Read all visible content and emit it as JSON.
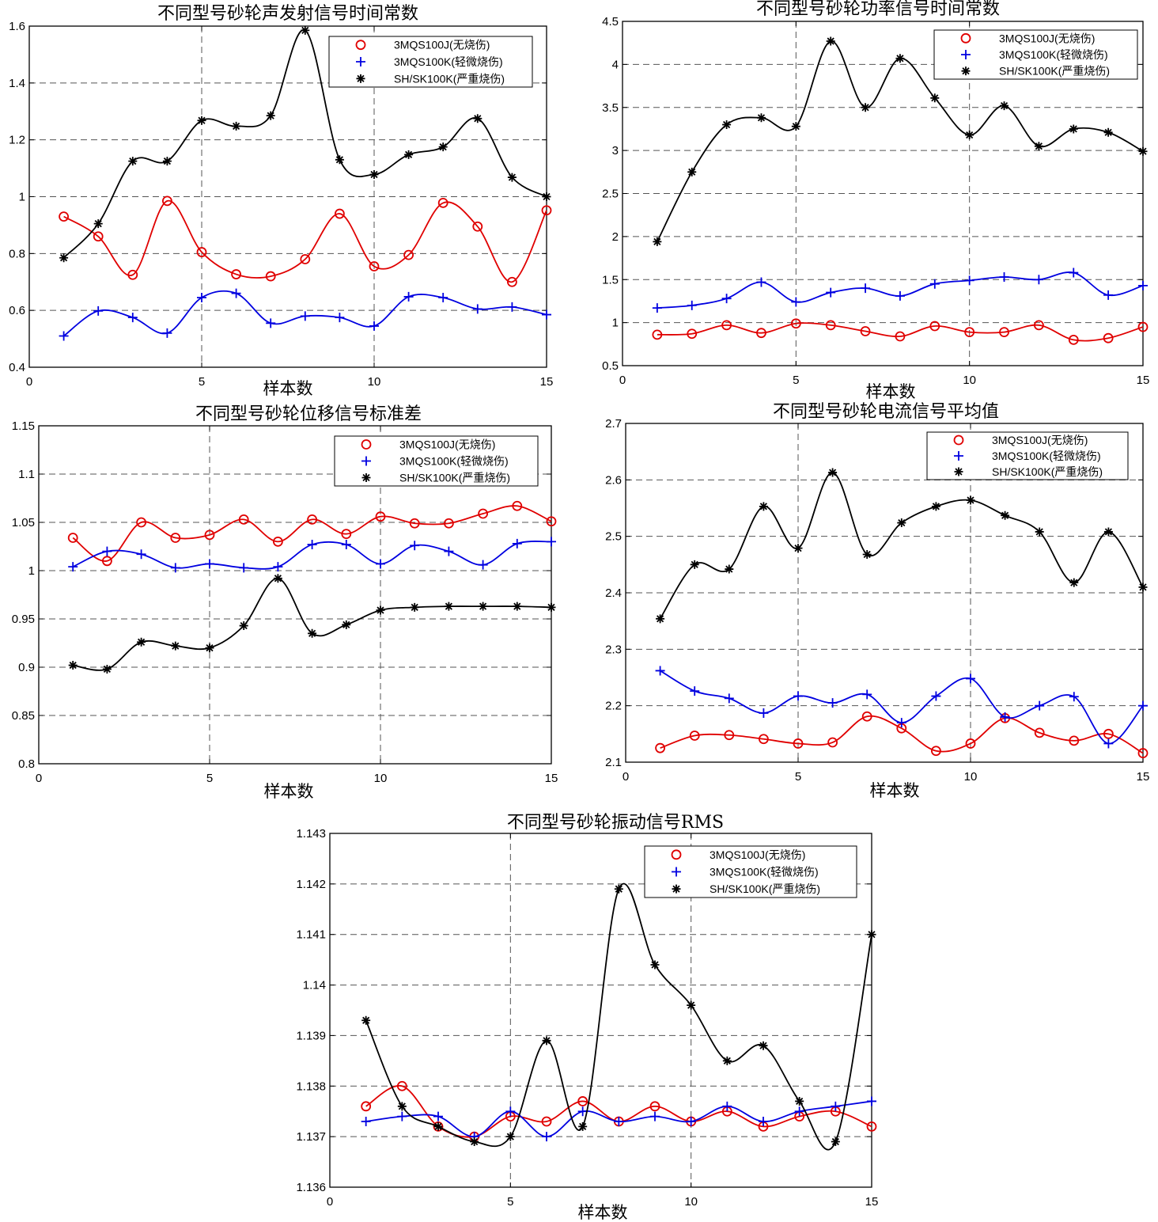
{
  "chart_data": [
    {
      "type": "line",
      "title": "不同型号砂轮声发射信号时间常数",
      "xlabel": "样本数",
      "ylabel": "",
      "xlim": [
        0,
        15
      ],
      "ylim": [
        0.4,
        1.6
      ],
      "xticks": [
        "0",
        "5",
        "10",
        "15"
      ],
      "yticks": [
        "0.4",
        "0.6",
        "0.8",
        "1",
        "1.2",
        "1.4",
        "1.6"
      ],
      "grid": true,
      "legend_position": "top-right",
      "x": [
        1,
        2,
        3,
        4,
        5,
        6,
        7,
        8,
        9,
        10,
        11,
        12,
        13,
        14,
        15
      ],
      "series": [
        {
          "name": "3MQS100J(无烧伤)",
          "color": "#e00000",
          "marker": "circle",
          "values": [
            0.93,
            0.86,
            0.725,
            0.985,
            0.805,
            0.727,
            0.72,
            0.78,
            0.94,
            0.755,
            0.795,
            0.978,
            0.895,
            0.7,
            0.952
          ]
        },
        {
          "name": "3MQS100K(轻微烧伤)",
          "color": "#0000e0",
          "marker": "plus",
          "values": [
            0.51,
            0.598,
            0.575,
            0.52,
            0.645,
            0.66,
            0.555,
            0.58,
            0.575,
            0.545,
            0.648,
            0.645,
            0.605,
            0.612,
            0.585
          ]
        },
        {
          "name": "SH/SK100K(严重烧伤)",
          "color": "#000000",
          "marker": "star",
          "values": [
            0.785,
            0.905,
            1.125,
            1.125,
            1.268,
            1.248,
            1.285,
            1.585,
            1.13,
            1.078,
            1.148,
            1.175,
            1.275,
            1.068,
            1.0
          ]
        }
      ]
    },
    {
      "type": "line",
      "title": "不同型号砂轮功率信号时间常数",
      "xlabel": "样本数",
      "ylabel": "",
      "xlim": [
        0,
        15
      ],
      "ylim": [
        0.5,
        4.5
      ],
      "xticks": [
        "0",
        "5",
        "10",
        "15"
      ],
      "yticks": [
        "0.5",
        "1",
        "1.5",
        "2",
        "2.5",
        "3",
        "3.5",
        "4",
        "4.5"
      ],
      "grid": true,
      "legend_position": "top-right",
      "x": [
        1,
        2,
        3,
        4,
        5,
        6,
        7,
        8,
        9,
        10,
        11,
        12,
        13,
        14,
        15
      ],
      "series": [
        {
          "name": "3MQS100J(无烧伤)",
          "color": "#e00000",
          "marker": "circle",
          "values": [
            0.86,
            0.87,
            0.97,
            0.88,
            0.99,
            0.97,
            0.9,
            0.84,
            0.96,
            0.89,
            0.89,
            0.97,
            0.8,
            0.82,
            0.95
          ]
        },
        {
          "name": "3MQS100K(轻微烧伤)",
          "color": "#0000e0",
          "marker": "plus",
          "values": [
            1.17,
            1.2,
            1.28,
            1.47,
            1.24,
            1.35,
            1.4,
            1.31,
            1.45,
            1.49,
            1.53,
            1.5,
            1.58,
            1.32,
            1.43
          ]
        },
        {
          "name": "SH/SK100K(严重烧伤)",
          "color": "#000000",
          "marker": "star",
          "values": [
            1.94,
            2.75,
            3.3,
            3.38,
            3.28,
            4.27,
            3.5,
            4.07,
            3.61,
            3.18,
            3.52,
            3.05,
            3.25,
            3.21,
            2.99
          ]
        }
      ]
    },
    {
      "type": "line",
      "title": "不同型号砂轮位移信号标准差",
      "xlabel": "样本数",
      "ylabel": "",
      "xlim": [
        0,
        15
      ],
      "ylim": [
        0.8,
        1.15
      ],
      "xticks": [
        "0",
        "5",
        "10",
        "15"
      ],
      "yticks": [
        "0.8",
        "0.85",
        "0.9",
        "0.95",
        "1",
        "1.05",
        "1.1",
        "1.15"
      ],
      "grid": true,
      "legend_position": "top-right",
      "x": [
        1,
        2,
        3,
        4,
        5,
        6,
        7,
        8,
        9,
        10,
        11,
        12,
        13,
        14,
        15
      ],
      "series": [
        {
          "name": "3MQS100J(无烧伤)",
          "color": "#e00000",
          "marker": "circle",
          "values": [
            1.034,
            1.01,
            1.05,
            1.034,
            1.037,
            1.053,
            1.03,
            1.053,
            1.038,
            1.056,
            1.049,
            1.049,
            1.059,
            1.067,
            1.051
          ]
        },
        {
          "name": "3MQS100K(轻微烧伤)",
          "color": "#0000e0",
          "marker": "plus",
          "values": [
            1.004,
            1.02,
            1.017,
            1.003,
            1.007,
            1.003,
            1.004,
            1.027,
            1.027,
            1.007,
            1.026,
            1.02,
            1.006,
            1.028,
            1.03
          ]
        },
        {
          "name": "SH/SK100K(严重烧伤)",
          "color": "#000000",
          "marker": "star",
          "values": [
            0.902,
            0.898,
            0.926,
            0.922,
            0.92,
            0.943,
            0.992,
            0.935,
            0.944,
            0.959,
            0.962,
            0.963,
            0.963,
            0.963,
            0.962
          ]
        }
      ]
    },
    {
      "type": "line",
      "title": "不同型号砂轮电流信号平均值",
      "xlabel": "样本数",
      "ylabel": "",
      "xlim": [
        0,
        15
      ],
      "ylim": [
        2.1,
        2.7
      ],
      "xticks": [
        "0",
        "5",
        "10",
        "15"
      ],
      "yticks": [
        "2.1",
        "2.2",
        "2.3",
        "2.4",
        "2.5",
        "2.6",
        "2.7"
      ],
      "grid": true,
      "legend_position": "top-right",
      "x": [
        1,
        2,
        3,
        4,
        5,
        6,
        7,
        8,
        9,
        10,
        11,
        12,
        13,
        14,
        15
      ],
      "series": [
        {
          "name": "3MQS100J(无烧伤)",
          "color": "#e00000",
          "marker": "circle",
          "values": [
            2.125,
            2.147,
            2.148,
            2.141,
            2.133,
            2.135,
            2.181,
            2.16,
            2.12,
            2.133,
            2.178,
            2.152,
            2.138,
            2.15,
            2.116
          ]
        },
        {
          "name": "3MQS100K(轻微烧伤)",
          "color": "#0000e0",
          "marker": "plus",
          "values": [
            2.262,
            2.226,
            2.213,
            2.187,
            2.217,
            2.205,
            2.22,
            2.17,
            2.217,
            2.248,
            2.18,
            2.2,
            2.216,
            2.133,
            2.2
          ]
        },
        {
          "name": "SH/SK100K(严重烧伤)",
          "color": "#000000",
          "marker": "star",
          "values": [
            2.354,
            2.45,
            2.442,
            2.553,
            2.479,
            2.613,
            2.468,
            2.524,
            2.553,
            2.564,
            2.537,
            2.508,
            2.418,
            2.508,
            2.41
          ]
        }
      ]
    },
    {
      "type": "line",
      "title": "不同型号砂轮振动信号RMS",
      "xlabel": "样本数",
      "ylabel": "",
      "xlim": [
        0,
        15
      ],
      "ylim": [
        1.136,
        1.143
      ],
      "xticks": [
        "0",
        "5",
        "10",
        "15"
      ],
      "yticks": [
        "1.136",
        "1.137",
        "1.138",
        "1.139",
        "1.14",
        "1.141",
        "1.142",
        "1.143"
      ],
      "grid": true,
      "legend_position": "top-right",
      "x": [
        1,
        2,
        3,
        4,
        5,
        6,
        7,
        8,
        9,
        10,
        11,
        12,
        13,
        14,
        15
      ],
      "series": [
        {
          "name": "3MQS100J(无烧伤)",
          "color": "#e00000",
          "marker": "circle",
          "values": [
            1.1376,
            1.138,
            1.1372,
            1.137,
            1.1374,
            1.1373,
            1.1377,
            1.1373,
            1.1376,
            1.1373,
            1.1375,
            1.1372,
            1.1374,
            1.1375,
            1.1372
          ]
        },
        {
          "name": "3MQS100K(轻微烧伤)",
          "color": "#0000e0",
          "marker": "plus",
          "values": [
            1.1373,
            1.1374,
            1.1374,
            1.137,
            1.1375,
            1.137,
            1.1375,
            1.1373,
            1.1374,
            1.1373,
            1.1376,
            1.1373,
            1.1375,
            1.1376,
            1.1377
          ]
        },
        {
          "name": "SH/SK100K(严重烧伤)",
          "color": "#000000",
          "marker": "star",
          "values": [
            1.1393,
            1.1376,
            1.1372,
            1.1369,
            1.137,
            1.1389,
            1.1372,
            1.1419,
            1.1404,
            1.1396,
            1.1385,
            1.1388,
            1.1377,
            1.1369,
            1.141
          ]
        }
      ]
    }
  ]
}
